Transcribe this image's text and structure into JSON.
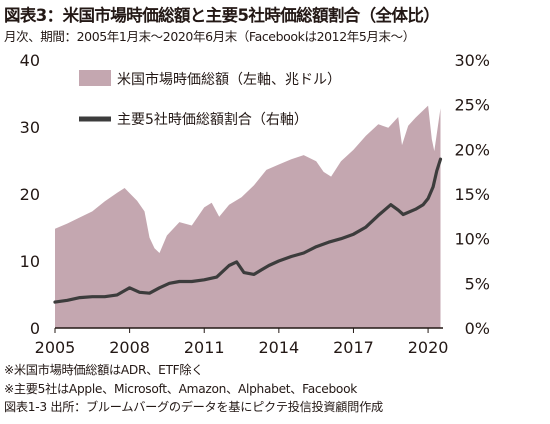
{
  "header": {
    "title": "図表3：米国市場時価総額と主要5社時価総額割合（全体比）",
    "subtitle": "月次、期間：2005年1月末～2020年6月末（Facebookは2012年5月末～）"
  },
  "notes": [
    "※米国市場時価総額はADR、ETF除く",
    "※主要5社はApple、Microsoft、Amazon、Alphabet、Facebook",
    "図表1-3 出所：ブルームバーグのデータを基にピクテ投信投資顧問作成"
  ],
  "colors": {
    "area": "#c4a7b0",
    "line": "#3c3c3c"
  },
  "chart_data": {
    "type": "area",
    "title": "米国市場時価総額と主要5社時価総額割合（全体比）",
    "x_ticks": [
      "2005",
      "2008",
      "2011",
      "2014",
      "2017",
      "2020"
    ],
    "y_left_ticks": [
      "0",
      "10",
      "20",
      "30",
      "40"
    ],
    "y_right_ticks": [
      "0%",
      "5%",
      "10%",
      "15%",
      "20%",
      "25%",
      "30%"
    ],
    "ylim_left": [
      0,
      40
    ],
    "ylim_right": [
      0,
      30
    ],
    "grid": false,
    "legend_position": "top-left",
    "series": [
      {
        "name": "米国市場時価総額（左軸、兆ドル）",
        "type": "area",
        "axis": "left",
        "x": [
          2005.0,
          2005.5,
          2006.0,
          2006.5,
          2007.0,
          2007.5,
          2007.8,
          2008.3,
          2008.6,
          2008.8,
          2009.0,
          2009.2,
          2009.5,
          2010.0,
          2010.5,
          2011.0,
          2011.3,
          2011.6,
          2012.0,
          2012.5,
          2013.0,
          2013.5,
          2014.0,
          2014.5,
          2015.0,
          2015.5,
          2015.8,
          2016.1,
          2016.5,
          2017.0,
          2017.5,
          2018.0,
          2018.4,
          2018.8,
          2018.95,
          2019.2,
          2019.5,
          2020.0,
          2020.15,
          2020.25,
          2020.5
        ],
        "values": [
          14.8,
          15.6,
          16.5,
          17.4,
          18.9,
          20.2,
          20.9,
          19.0,
          17.4,
          13.5,
          11.9,
          11.2,
          13.8,
          15.8,
          15.3,
          18.0,
          18.7,
          16.6,
          18.4,
          19.5,
          21.3,
          23.6,
          24.4,
          25.2,
          25.8,
          24.9,
          23.3,
          22.6,
          24.9,
          26.6,
          28.7,
          30.4,
          29.9,
          31.5,
          27.3,
          30.2,
          31.4,
          33.2,
          28.2,
          26.4,
          32.8
        ]
      },
      {
        "name": "主要5社時価総額割合（右軸）",
        "type": "line",
        "axis": "right",
        "x": [
          2005.0,
          2005.5,
          2006.0,
          2006.5,
          2007.0,
          2007.5,
          2008.0,
          2008.4,
          2008.8,
          2009.2,
          2009.6,
          2010.0,
          2010.5,
          2011.0,
          2011.5,
          2012.0,
          2012.3,
          2012.6,
          2013.0,
          2013.3,
          2013.6,
          2014.0,
          2014.5,
          2015.0,
          2015.5,
          2016.0,
          2016.5,
          2017.0,
          2017.5,
          2018.0,
          2018.5,
          2018.8,
          2019.0,
          2019.5,
          2019.8,
          2020.0,
          2020.2,
          2020.35,
          2020.5
        ],
        "values": [
          2.9,
          3.1,
          3.4,
          3.5,
          3.5,
          3.7,
          4.5,
          4.0,
          3.9,
          4.5,
          5.0,
          5.2,
          5.2,
          5.4,
          5.7,
          7.0,
          7.4,
          6.2,
          6.0,
          6.5,
          7.0,
          7.5,
          8.0,
          8.4,
          9.1,
          9.6,
          10.0,
          10.5,
          11.3,
          12.6,
          13.8,
          13.2,
          12.7,
          13.3,
          13.8,
          14.5,
          15.8,
          17.6,
          18.9
        ]
      }
    ]
  }
}
